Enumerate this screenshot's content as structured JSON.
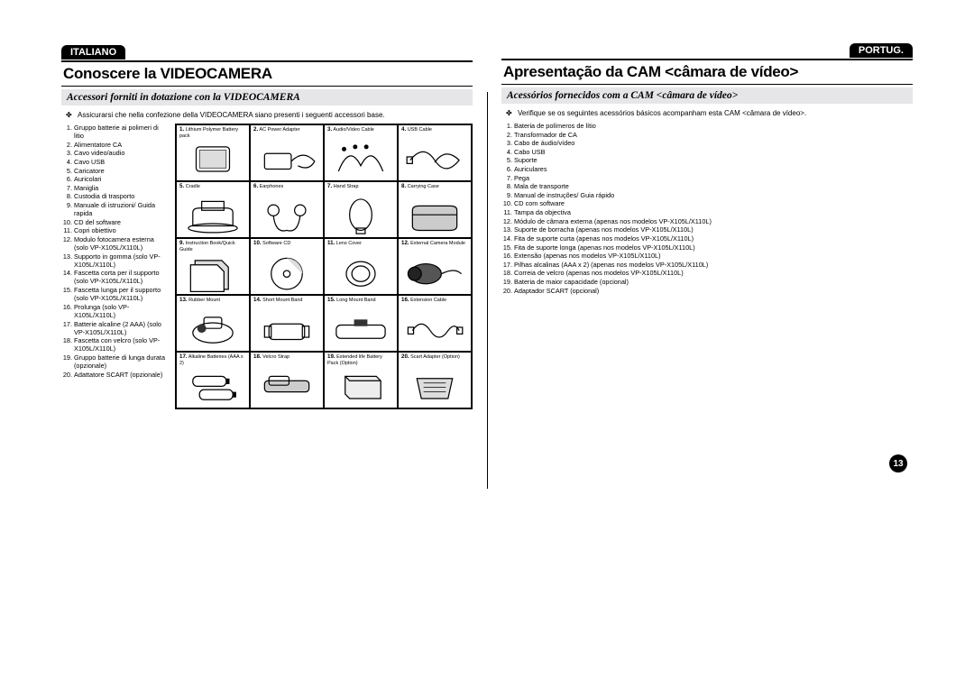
{
  "page_number": "13",
  "left": {
    "lang_badge": "ITALIANO",
    "title": "Conoscere la VIDEOCAMERA",
    "subtitle": "Accessori forniti in dotazione con la VIDEOCAMERA",
    "intro": "Assicurarsi che nella confezione della VIDEOCAMERA siano presenti i seguenti accessori base.",
    "items": [
      "Gruppo batterie ai polimeri di litio",
      "Alimentatore CA",
      "Cavo video/audio",
      "Cavo USB",
      "Caricatore",
      "Auricolari",
      "Maniglia",
      "Custodia di trasporto",
      "Manuale di istruzioni/ Guida rapida",
      "CD del software",
      "Copri obiettivo",
      "Modulo fotocamera esterna (solo VP-X105L/X110L)",
      "Supporto in gomma (solo VP-X105L/X110L)",
      "Fascetta corta per il supporto (solo VP-X105L/X110L)",
      "Fascetta lunga per il supporto (solo VP-X105L/X110L)",
      "Prolunga (solo VP-X105L/X110L)",
      "Batterie alcaline (2 AAA) (solo VP-X105L/X110L)",
      "Fascetta con velcro (solo VP-X105L/X110L)",
      "Gruppo batterie di lunga durata (opzionale)",
      "Adattatore SCART (opzionale)"
    ]
  },
  "right": {
    "lang_badge": "PORTUG.",
    "title": "Apresentação da CAM <câmara de vídeo>",
    "subtitle": "Acessórios fornecidos com a CAM <câmara de vídeo>",
    "intro": "Verifique se os seguintes acessórios básicos acompanham esta CAM <câmara de vídeo>.",
    "items": [
      "Bateria de polímeros de lítio",
      "Transformador de CA",
      "Cabo de áudio/vídeo",
      "Cabo USB",
      "Suporte",
      "Auriculares",
      "Pega",
      "Mala de transporte",
      "Manual de instruções/ Guia rápido",
      "CD com software",
      "Tampa da objectiva",
      "Módulo de câmara externa (apenas nos modelos VP-X105L/X110L)",
      "Suporte de borracha (apenas nos modelos VP-X105L/X110L)",
      "Fita de suporte curta (apenas nos modelos VP-X105L/X110L)",
      "Fita de suporte longa (apenas nos modelos VP-X105L/X110L)",
      "Extensão (apenas nos modelos VP-X105L/X110L)",
      "Pilhas alcalinas (AAA x 2) (apenas nos modelos VP-X105L/X110L)",
      "Correia de velcro (apenas nos modelos VP-X105L/X110L)",
      "Bateria de maior capacidade (opcional)",
      "Adaptador SCART (opcional)"
    ]
  },
  "grid": [
    {
      "n": "1",
      "label": "Lithium Polymer Battery pack",
      "icon": "battery"
    },
    {
      "n": "2",
      "label": "AC Power Adapter",
      "icon": "adapter"
    },
    {
      "n": "3",
      "label": "Audio/Video Cable",
      "icon": "av"
    },
    {
      "n": "4",
      "label": "USB Cable",
      "icon": "usb"
    },
    {
      "n": "5",
      "label": "Cradle",
      "icon": "cradle"
    },
    {
      "n": "6",
      "label": "Earphones",
      "icon": "ear"
    },
    {
      "n": "7",
      "label": "Hand Strap",
      "icon": "strap"
    },
    {
      "n": "8",
      "label": "Carrying Case",
      "icon": "case"
    },
    {
      "n": "9",
      "label": "Instruction Book/Quick Guide",
      "icon": "book"
    },
    {
      "n": "10",
      "label": "Software CD",
      "icon": "cd"
    },
    {
      "n": "11",
      "label": "Lens Cover",
      "icon": "lens"
    },
    {
      "n": "12",
      "label": "External Camera Module",
      "icon": "cam"
    },
    {
      "n": "13",
      "label": "Rubber Mount",
      "icon": "mount"
    },
    {
      "n": "14",
      "label": "Short Mount Band",
      "icon": "sband"
    },
    {
      "n": "15",
      "label": "Long Mount Band",
      "icon": "lband"
    },
    {
      "n": "16",
      "label": "Extension Cable",
      "icon": "ext"
    },
    {
      "n": "17",
      "label": "Alkaline Batteries (AAA x 2)",
      "icon": "aaa"
    },
    {
      "n": "18",
      "label": "Velcro Strap",
      "icon": "velcro"
    },
    {
      "n": "19",
      "label": "Extended life Battery Pack (Option)",
      "icon": "ebatt"
    },
    {
      "n": "20",
      "label": "Scart Adapter (Option)",
      "icon": "scart"
    }
  ],
  "colors": {
    "bar_bg": "#e6e6e8",
    "stroke": "#000000"
  }
}
